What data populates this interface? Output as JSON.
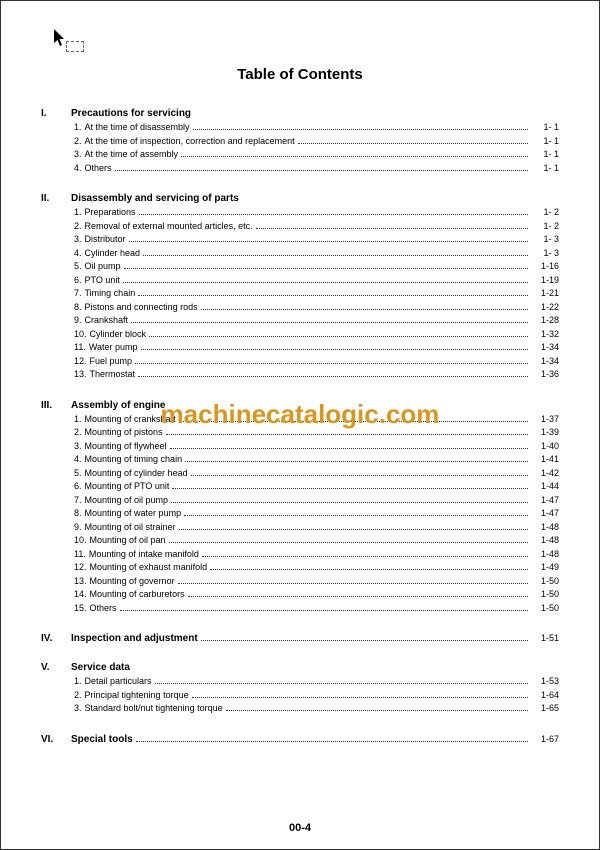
{
  "title": "Table of Contents",
  "watermark": "machinecatalogic.com",
  "page_footer": "00-4",
  "colors": {
    "watermark": "#d89820",
    "text": "#000000",
    "border": "#333333"
  },
  "sections": [
    {
      "number": "I.",
      "title": "Precautions for servicing",
      "items": [
        {
          "num": "1.",
          "label": "At the time of disassembly",
          "page": "1-  1"
        },
        {
          "num": "2.",
          "label": "At the time of inspection, correction and replacement",
          "page": "1-  1"
        },
        {
          "num": "3.",
          "label": "At the time of assembly",
          "page": "1-  1"
        },
        {
          "num": "4.",
          "label": "Others",
          "page": "1-  1"
        }
      ]
    },
    {
      "number": "II.",
      "title": "Disassembly and servicing of parts",
      "items": [
        {
          "num": "1.",
          "label": "Preparations",
          "page": "1-  2"
        },
        {
          "num": "2.",
          "label": "Removal of external mounted articles, etc.",
          "page": "1-  2"
        },
        {
          "num": "3.",
          "label": "Distributor",
          "page": "1-  3"
        },
        {
          "num": "4.",
          "label": "Cylinder head",
          "page": "1-  3"
        },
        {
          "num": "5.",
          "label": "Oil pump",
          "page": "1-16"
        },
        {
          "num": "6.",
          "label": "PTO unit",
          "page": "1-19"
        },
        {
          "num": "7.",
          "label": "Timing chain",
          "page": "1-21"
        },
        {
          "num": "8.",
          "label": "Pistons and connecting rods",
          "page": "1-22"
        },
        {
          "num": "9.",
          "label": "Crankshaft",
          "page": "1-28"
        },
        {
          "num": "10.",
          "label": "Cylinder block",
          "page": "1-32"
        },
        {
          "num": "11.",
          "label": "Water pump",
          "page": "1-34"
        },
        {
          "num": "12.",
          "label": "Fuel pump",
          "page": "1-34"
        },
        {
          "num": "13.",
          "label": "Thermostat",
          "page": "1-36"
        }
      ]
    },
    {
      "number": "III.",
      "title": "Assembly of engine",
      "items": [
        {
          "num": "1.",
          "label": "Mounting of crankshaft",
          "page": "1-37"
        },
        {
          "num": "2.",
          "label": "Mounting of pistons",
          "page": "1-39"
        },
        {
          "num": "3.",
          "label": "Mounting of flywheel",
          "page": "1-40"
        },
        {
          "num": "4.",
          "label": "Mounting of timing chain",
          "page": "1-41"
        },
        {
          "num": "5.",
          "label": "Mounting of cylinder head",
          "page": "1-42"
        },
        {
          "num": "6.",
          "label": "Mounting of PTO unit",
          "page": "1-44"
        },
        {
          "num": "7.",
          "label": "Mounting of oil pump",
          "page": "1-47"
        },
        {
          "num": "8.",
          "label": "Mounting of water pump",
          "page": "1-47"
        },
        {
          "num": "9.",
          "label": "Mounting of oil strainer",
          "page": "1-48"
        },
        {
          "num": "10.",
          "label": "Mounting of oil pan",
          "page": "1-48"
        },
        {
          "num": "11.",
          "label": "Mounting of intake manifold",
          "page": "1-48"
        },
        {
          "num": "12.",
          "label": "Mounting of exhaust manifold",
          "page": "1-49"
        },
        {
          "num": "13.",
          "label": "Mounting of governor",
          "page": "1-50"
        },
        {
          "num": "14.",
          "label": "Mounting of carburetors",
          "page": "1-50"
        },
        {
          "num": "15.",
          "label": "Others",
          "page": "1-50"
        }
      ]
    },
    {
      "number": "IV.",
      "title": "Inspection and adjustment",
      "title_page": "1-51",
      "items": []
    },
    {
      "number": "V.",
      "title": "Service data",
      "items": [
        {
          "num": "1.",
          "label": "Detail particulars",
          "page": "1-53"
        },
        {
          "num": "2.",
          "label": "Principal tightening torque",
          "page": "1-64"
        },
        {
          "num": "3.",
          "label": "Standard bolt/nut tightening torque",
          "page": "1-65"
        }
      ]
    },
    {
      "number": "VI.",
      "title": "Special tools",
      "title_page": "1-67",
      "items": []
    }
  ]
}
